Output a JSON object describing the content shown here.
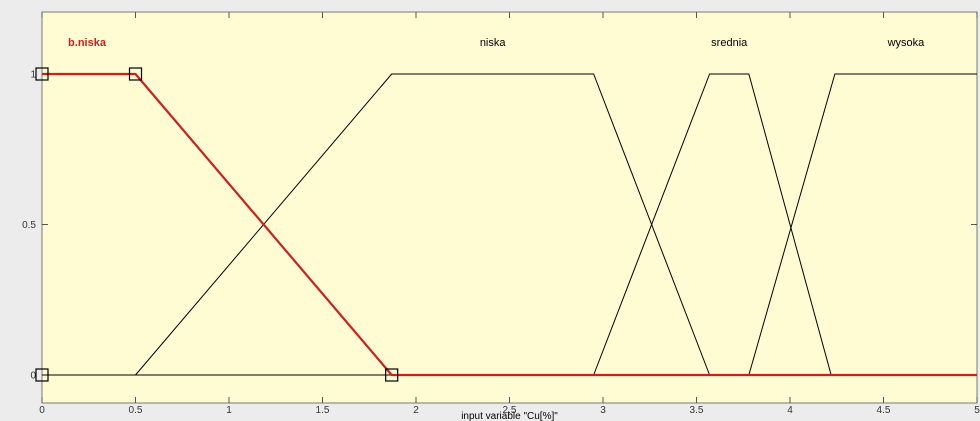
{
  "chart_data": {
    "type": "line",
    "title": "",
    "xlabel": "input variable \"Cu[%]\"",
    "ylabel": "",
    "xlim": [
      0,
      5
    ],
    "ylim": [
      0,
      1
    ],
    "x_ticks": [
      "0",
      "0.5",
      "1",
      "1.5",
      "2",
      "2.5",
      "3",
      "3.5",
      "4",
      "4.5",
      "5"
    ],
    "y_ticks": [
      "0",
      "0.5",
      "1"
    ],
    "grid": false,
    "colors": {
      "plot_background": "#fffcd3",
      "figure_background": "#ececec",
      "selected": "#cc1f1f",
      "default": "#000000"
    },
    "series": [
      {
        "name": "b.niska",
        "shape": "trapezoid",
        "params": [
          0,
          0,
          0.5,
          1.87
        ],
        "selected": true
      },
      {
        "name": "niska",
        "shape": "trapezoid",
        "params": [
          0.5,
          1.87,
          2.95,
          3.57
        ],
        "selected": false
      },
      {
        "name": "srednia",
        "shape": "trapezoid",
        "params": [
          2.95,
          3.57,
          3.78,
          4.22
        ],
        "selected": false
      },
      {
        "name": "wysoka",
        "shape": "trapezoid",
        "params": [
          3.78,
          4.24,
          5,
          5
        ],
        "selected": false
      }
    ],
    "label_order": [
      "b.niska",
      "niska",
      "srednia",
      "wysoka"
    ]
  }
}
